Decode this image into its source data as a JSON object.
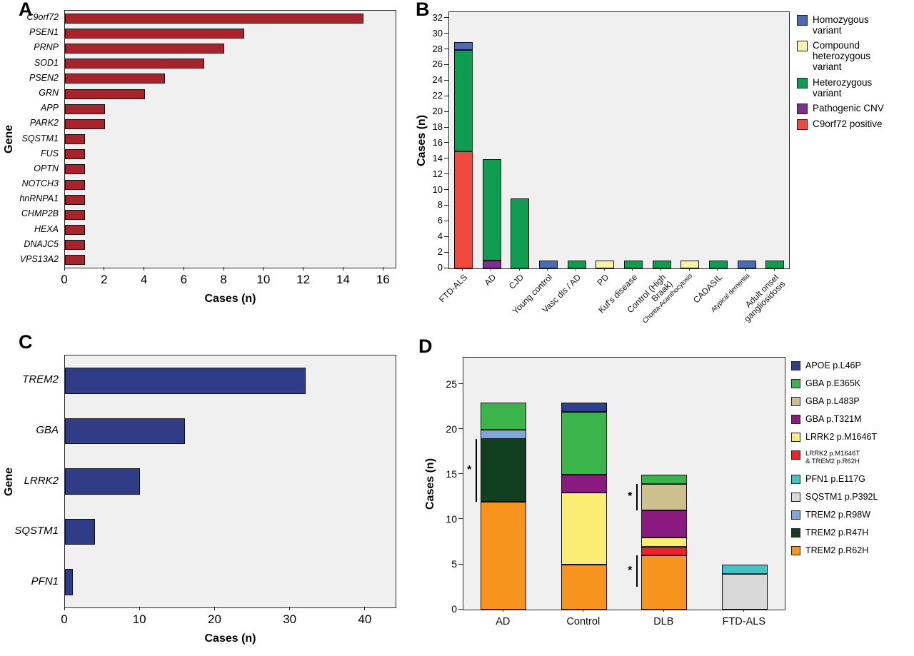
{
  "figure": {
    "background": "#ffffff",
    "panels": [
      {
        "letter": "A"
      },
      {
        "letter": "B"
      },
      {
        "letter": "C"
      },
      {
        "letter": "D"
      }
    ]
  },
  "chart_data": [
    {
      "id": "A",
      "type": "bar",
      "orientation": "horizontal",
      "xlabel": "Cases (n)",
      "ylabel": "Gene",
      "categories": [
        "C9orf72",
        "PSEN1",
        "PRNP",
        "SOD1",
        "PSEN2",
        "GRN",
        "APP",
        "PARK2",
        "SQSTM1",
        "FUS",
        "OPTN",
        "NOTCH3",
        "hnRNPA1",
        "CHMP2B",
        "HEXA",
        "DNAJC5",
        "VPS13A2"
      ],
      "values": [
        15,
        9,
        8,
        7,
        5,
        4,
        2,
        2,
        1,
        1,
        1,
        1,
        1,
        1,
        1,
        1,
        1
      ],
      "bar_color": "#A8232A",
      "xticks": [
        0,
        2,
        4,
        6,
        8,
        10,
        12,
        14,
        16
      ],
      "xlim": [
        0,
        16.6
      ],
      "grid": false,
      "plot_bg": "#F0F0F0"
    },
    {
      "id": "B",
      "type": "stacked-bar",
      "orientation": "vertical",
      "xlabel": "",
      "ylabel": "Cases (n)",
      "categories": [
        "FTD-ALS",
        "AD",
        "CJD",
        "Young control",
        "Vasc dis / AD",
        "PD",
        "Kuf's disease",
        "Control (High\nBraak)",
        "Chorea-Acanthocytosis",
        "CADASIL",
        "Atypical dementia",
        "Adult onset\ngangliosidosis"
      ],
      "yticks": [
        0,
        2,
        4,
        6,
        8,
        10,
        12,
        14,
        16,
        18,
        20,
        22,
        24,
        26,
        28,
        30,
        32
      ],
      "ylim": [
        0,
        32.8
      ],
      "legend_position": "right",
      "legend": [
        {
          "label": "Homozygous\nvariant",
          "color": "#4D6BB3"
        },
        {
          "label": "Compound\nheterozygous\nvariant",
          "color": "#F6F2A7"
        },
        {
          "label": "Heterozygous\nvariant",
          "color": "#0E9D51"
        },
        {
          "label": "Pathogenic CNV",
          "color": "#7E2E8C"
        },
        {
          "label": "C9orf72 positive",
          "color": "#F2493F"
        }
      ],
      "series": [
        {
          "name": "C9orf72 positive",
          "color": "#F2493F",
          "values": [
            15,
            0,
            0,
            0,
            0,
            0,
            0,
            0,
            0,
            0,
            0,
            0
          ]
        },
        {
          "name": "Pathogenic CNV",
          "color": "#7E2E8C",
          "values": [
            0,
            1,
            0,
            0,
            0,
            0,
            0,
            0,
            0,
            0,
            0,
            0
          ]
        },
        {
          "name": "Heterozygous variant",
          "color": "#0E9D51",
          "values": [
            13,
            13,
            9,
            0,
            1,
            0,
            1,
            1,
            0,
            1,
            0,
            1
          ]
        },
        {
          "name": "Compound heterozygous variant",
          "color": "#F6F2A7",
          "values": [
            0,
            0,
            0,
            0,
            0,
            1,
            0,
            0,
            1,
            0,
            0,
            0
          ]
        },
        {
          "name": "Homozygous variant",
          "color": "#4D6BB3",
          "values": [
            1,
            0,
            0,
            1,
            0,
            0,
            0,
            0,
            0,
            0,
            1,
            0
          ]
        }
      ],
      "plot_bg": "#F0F0F0"
    },
    {
      "id": "C",
      "type": "bar",
      "orientation": "horizontal",
      "xlabel": "Cases (n)",
      "ylabel": "Gene",
      "categories": [
        "TREM2",
        "GBA",
        "LRRK2",
        "SQSTM1",
        "PFN1"
      ],
      "values": [
        32,
        16,
        10,
        4,
        1
      ],
      "bar_color": "#313C86",
      "xticks": [
        0,
        10,
        20,
        30,
        40
      ],
      "xlim": [
        0,
        44
      ],
      "grid": false,
      "plot_bg": "#F0F0F0"
    },
    {
      "id": "D",
      "type": "stacked-bar",
      "orientation": "vertical",
      "xlabel": "",
      "ylabel": "Cases (n)",
      "categories": [
        "AD",
        "Control",
        "DLB",
        "FTD-ALS"
      ],
      "yticks": [
        0,
        5,
        10,
        15,
        20,
        25
      ],
      "ylim": [
        0,
        28
      ],
      "legend_position": "right",
      "legend": [
        {
          "label": "APOE p.L46P",
          "color": "#2E3E90"
        },
        {
          "label": "GBA p.E365K",
          "color": "#3BB54A"
        },
        {
          "label": "GBA p.L483P",
          "color": "#CDC08E"
        },
        {
          "label": "GBA p.T321M",
          "color": "#8B1A80"
        },
        {
          "label": "LRRK2 p.M1646T",
          "color": "#F9EE72"
        },
        {
          "label": "LRRK2 p.M1646T\n& TREM2 p.R62H",
          "color": "#EC2227",
          "small": true
        },
        {
          "label": "PFN1 p.E117G",
          "color": "#45C2C8"
        },
        {
          "label": "SQSTM1 p.P392L",
          "color": "#D9D9D9"
        },
        {
          "label": "TREM2 p.R98W",
          "color": "#7EA6D8"
        },
        {
          "label": "TREM2 p.R47H",
          "color": "#10401F"
        },
        {
          "label": "TREM2 p.R62H",
          "color": "#F7941E"
        }
      ],
      "series": [
        {
          "name": "TREM2 p.R62H",
          "color": "#F7941E",
          "values": [
            12,
            5,
            6,
            0
          ]
        },
        {
          "name": "SQSTM1 p.P392L",
          "color": "#D9D9D9",
          "values": [
            0,
            0,
            0,
            4
          ]
        },
        {
          "name": "LRRK2 p.M1646T & TREM2 p.R62H",
          "color": "#EC2227",
          "values": [
            0,
            0,
            1,
            0
          ]
        },
        {
          "name": "LRRK2 p.M1646T",
          "color": "#F9EE72",
          "values": [
            0,
            8,
            1,
            0
          ]
        },
        {
          "name": "GBA p.T321M",
          "color": "#8B1A80",
          "values": [
            0,
            2,
            3,
            0
          ]
        },
        {
          "name": "GBA p.L483P",
          "color": "#CDC08E",
          "values": [
            0,
            0,
            3,
            0
          ]
        },
        {
          "name": "TREM2 p.R47H",
          "color": "#10401F",
          "values": [
            7,
            0,
            0,
            0
          ]
        },
        {
          "name": "TREM2 p.R98W",
          "color": "#7EA6D8",
          "values": [
            1,
            0,
            0,
            0
          ]
        },
        {
          "name": "GBA p.E365K",
          "color": "#3BB54A",
          "values": [
            3,
            7,
            1,
            0
          ]
        },
        {
          "name": "PFN1 p.E117G",
          "color": "#45C2C8",
          "values": [
            0,
            0,
            0,
            1
          ]
        },
        {
          "name": "APOE p.L46P",
          "color": "#2E3E90",
          "values": [
            0,
            1,
            0,
            0
          ]
        }
      ],
      "annotations": [
        {
          "category": 0,
          "symbol": "*",
          "y_from": 12,
          "y_to": 19
        },
        {
          "category": 2,
          "symbol": "*",
          "y_from": 11,
          "y_to": 14
        },
        {
          "category": 2,
          "symbol": "*",
          "y_from": 2.5,
          "y_to": 6
        }
      ],
      "plot_bg": "#F0F0F0"
    }
  ]
}
